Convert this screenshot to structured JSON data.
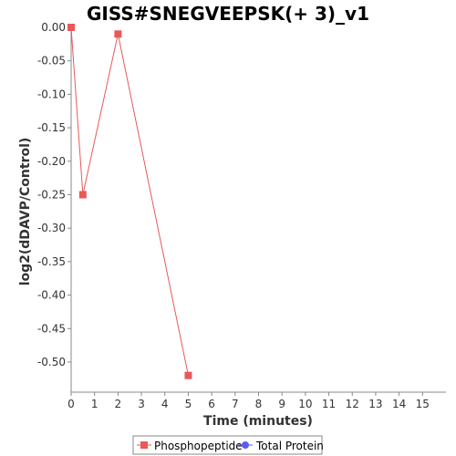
{
  "chart_data": {
    "type": "line",
    "title": "GISS#SNEGVEEPSK(+ 3)_v1",
    "xlabel": "Time (minutes)",
    "ylabel": "log2(dDAVP/Control)",
    "xlim": [
      0,
      16
    ],
    "ylim": [
      -0.545,
      0.0
    ],
    "xticks": [
      0,
      1,
      2,
      3,
      4,
      5,
      6,
      7,
      8,
      9,
      10,
      11,
      12,
      13,
      14,
      15
    ],
    "yticks": [
      0.0,
      -0.05,
      -0.1,
      -0.15,
      -0.2,
      -0.25,
      -0.3,
      -0.35,
      -0.4,
      -0.45,
      -0.5
    ],
    "ytick_labels": [
      "0.00",
      "-0.05",
      "-0.10",
      "-0.15",
      "-0.20",
      "-0.25",
      "-0.30",
      "-0.35",
      "-0.40",
      "-0.45",
      "-0.50"
    ],
    "grid": false,
    "legend_placement": "bottom-center",
    "series": [
      {
        "name": "Phosphopeptide",
        "color": "#e8595a",
        "marker": "square",
        "x": [
          0,
          0.5,
          2,
          5
        ],
        "y": [
          0.0,
          -0.25,
          -0.01,
          -0.52
        ]
      },
      {
        "name": "Total Protein",
        "color": "#5b5bf0",
        "marker": "circle",
        "x": [],
        "y": []
      }
    ]
  }
}
